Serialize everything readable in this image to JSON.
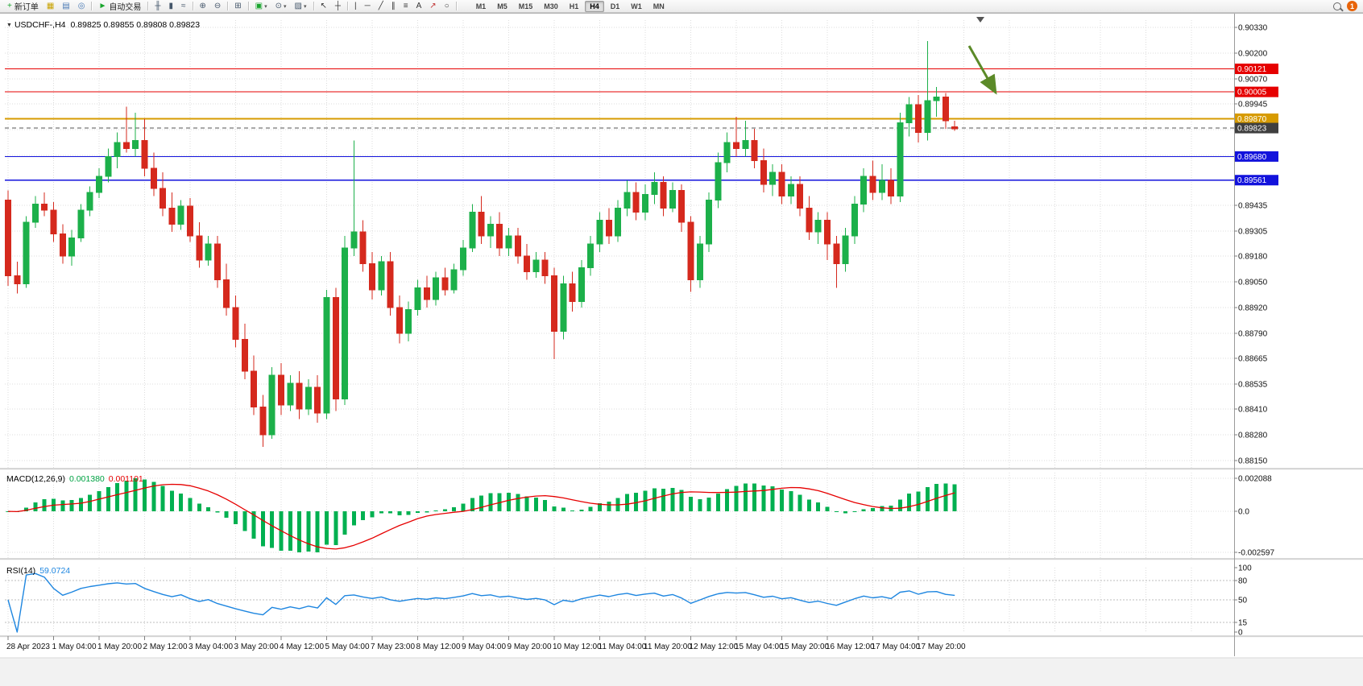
{
  "toolbar": {
    "buttons": [
      {
        "name": "new-order-button",
        "icon": "plus-doc-icon",
        "glyph": "+",
        "glyph_color": "#18a52c",
        "label": "新订单"
      },
      {
        "name": "charts-grid-button",
        "icon": "chart-grid-icon",
        "glyph": "▦",
        "glyph_color": "#c8a200"
      },
      {
        "name": "market-watch-button",
        "icon": "market-watch-icon",
        "glyph": "▤",
        "glyph_color": "#4a7ab5"
      },
      {
        "name": "navigator-button",
        "icon": "navigator-icon",
        "glyph": "◎",
        "glyph_color": "#4a7ab5",
        "sep_after": true
      },
      {
        "name": "auto-trading-button",
        "icon": "play-icon",
        "glyph": "►",
        "glyph_color": "#18a52c",
        "label": "自动交易",
        "sep_after": true
      },
      {
        "name": "bar-chart-button",
        "icon": "bar-chart-icon",
        "glyph": "╫",
        "glyph_color": "#44566a"
      },
      {
        "name": "candlestick-chart-button",
        "icon": "candlestick-icon",
        "glyph": "▮",
        "glyph_color": "#44566a"
      },
      {
        "name": "line-chart-button",
        "icon": "line-chart-icon",
        "glyph": "≈",
        "glyph_color": "#44566a",
        "sep_after": true
      },
      {
        "name": "zoom-in-button",
        "icon": "zoom-in-icon",
        "glyph": "⊕",
        "glyph_color": "#44566a"
      },
      {
        "name": "zoom-out-button",
        "icon": "zoom-out-icon",
        "glyph": "⊖",
        "glyph_color": "#44566a",
        "sep_after": true
      },
      {
        "name": "tile-windows-button",
        "icon": "tile-windows-icon",
        "glyph": "⊞",
        "glyph_color": "#44566a",
        "sep_after": true
      },
      {
        "name": "new-chart-button",
        "icon": "new-chart-icon",
        "glyph": "▣",
        "glyph_color": "#18a52c",
        "caret": true
      },
      {
        "name": "periods-button",
        "icon": "clock-icon",
        "glyph": "⊙",
        "glyph_color": "#44566a",
        "caret": true
      },
      {
        "name": "templates-button",
        "icon": "template-icon",
        "glyph": "▨",
        "glyph_color": "#44566a",
        "caret": true,
        "sep_after": true
      },
      {
        "name": "cursor-button",
        "icon": "cursor-icon",
        "glyph": "↖",
        "glyph_color": "#333333"
      },
      {
        "name": "crosshair-button",
        "icon": "crosshair-icon",
        "glyph": "┼",
        "glyph_color": "#333333",
        "sep_after": true
      },
      {
        "name": "vertical-line-button",
        "icon": "vertical-line-icon",
        "glyph": "|",
        "glyph_color": "#333333"
      },
      {
        "name": "horizontal-line-button",
        "icon": "horizontal-line-icon",
        "glyph": "─",
        "glyph_color": "#333333"
      },
      {
        "name": "trendline-button",
        "icon": "trendline-icon",
        "glyph": "╱",
        "glyph_color": "#333333"
      },
      {
        "name": "channel-button",
        "icon": "channel-icon",
        "glyph": "∥",
        "glyph_color": "#333333"
      },
      {
        "name": "fibonacci-button",
        "icon": "fibonacci-icon",
        "glyph": "≡",
        "glyph_color": "#333333"
      },
      {
        "name": "text-button",
        "icon": "text-icon",
        "glyph": "A",
        "glyph_color": "#333333"
      },
      {
        "name": "arrows-button",
        "icon": "arrow-marker-icon",
        "glyph": "↗",
        "glyph_color": "#c03030"
      },
      {
        "name": "shapes-button",
        "icon": "shapes-icon",
        "glyph": "○",
        "glyph_color": "#333333",
        "sep_after": true
      }
    ],
    "timeframes": [
      "M1",
      "M5",
      "M15",
      "M30",
      "H1",
      "H4",
      "D1",
      "W1",
      "MN"
    ],
    "active_timeframe": "H4",
    "notification_count": "1"
  },
  "chart": {
    "one_click_arrow": "▼",
    "title_symbol": "USDCHF-,H4",
    "title_ohlc": "0.89825 0.89855 0.89808 0.89823"
  },
  "panes": {
    "macd": {
      "label": "MACD(12,26,9)",
      "main_value": "0.001380",
      "signal_value": "0.001101"
    },
    "rsi": {
      "label": "RSI(14)",
      "value": "59.0724"
    }
  },
  "chart_data": [
    {
      "type": "candlestick",
      "symbol": "USDCHF-",
      "timeframe": "H4",
      "current_ohlc": {
        "open": 0.89825,
        "high": 0.89855,
        "low": 0.89808,
        "close": 0.89823
      },
      "up_color": "#1cb04a",
      "down_color": "#d5291d",
      "grid_on": true,
      "y_tick_labels": [
        "0.90330",
        "0.90200",
        "0.90070",
        "0.89945",
        "0.89815",
        "0.89685",
        "0.89560",
        "0.89435",
        "0.89305",
        "0.89180",
        "0.89050",
        "0.88920",
        "0.88790",
        "0.88665",
        "0.88535",
        "0.88410",
        "0.88280",
        "0.88150"
      ],
      "y_tick_values": [
        0.9033,
        0.902,
        0.9007,
        0.89945,
        0.89815,
        0.89685,
        0.8956,
        0.89435,
        0.89305,
        0.8918,
        0.8905,
        0.8892,
        0.8879,
        0.88665,
        0.88535,
        0.8841,
        0.8828,
        0.8815
      ],
      "ylim": [
        0.88114,
        0.90366
      ],
      "x_labels": [
        "28 Apr 2023",
        "1 May 04:00",
        "1 May 20:00",
        "2 May 12:00",
        "3 May 04:00",
        "3 May 20:00",
        "4 May 12:00",
        "5 May 04:00",
        "7 May 23:00",
        "8 May 12:00",
        "9 May 04:00",
        "9 May 20:00",
        "10 May 12:00",
        "11 May 04:00",
        "11 May 20:00",
        "12 May 12:00",
        "15 May 04:00",
        "15 May 20:00",
        "16 May 12:00",
        "17 May 04:00",
        "17 May 20:00"
      ],
      "hlines": [
        {
          "value": 0.90121,
          "label": "0.90121",
          "color": "#e60000",
          "style": "solid"
        },
        {
          "value": 0.90005,
          "label": "0.90005",
          "color": "#e60000",
          "style": "solid"
        },
        {
          "value": 0.8987,
          "label": "0.89870",
          "color": "#d79b00",
          "style": "solid"
        },
        {
          "value": 0.8968,
          "label": "0.89680",
          "color": "#1212dc",
          "style": "solid"
        },
        {
          "value": 0.89561,
          "label": "0.89561",
          "color": "#1212dc",
          "style": "solid"
        }
      ],
      "current_price": {
        "value": 0.89823,
        "label": "0.89823",
        "color": "#3f3f3f"
      },
      "arrow_annotation": {
        "color": "#5b8a28",
        "direction": "down-right"
      },
      "candles": [
        [
          0.8946,
          0.8951,
          0.8903,
          0.8908
        ],
        [
          0.8908,
          0.8915,
          0.8899,
          0.8904
        ],
        [
          0.8904,
          0.8938,
          0.8902,
          0.8935
        ],
        [
          0.8935,
          0.8948,
          0.8932,
          0.8944
        ],
        [
          0.8944,
          0.895,
          0.8938,
          0.8941
        ],
        [
          0.8941,
          0.8945,
          0.8925,
          0.8929
        ],
        [
          0.8929,
          0.8934,
          0.8914,
          0.8918
        ],
        [
          0.8918,
          0.8931,
          0.8913,
          0.8927
        ],
        [
          0.8927,
          0.8944,
          0.8925,
          0.8941
        ],
        [
          0.8941,
          0.8953,
          0.8938,
          0.895
        ],
        [
          0.895,
          0.8962,
          0.8947,
          0.8958
        ],
        [
          0.8958,
          0.8972,
          0.8955,
          0.8968
        ],
        [
          0.8968,
          0.898,
          0.8962,
          0.8975
        ],
        [
          0.8975,
          0.8993,
          0.897,
          0.8972
        ],
        [
          0.8972,
          0.899,
          0.8968,
          0.8976
        ],
        [
          0.8976,
          0.8987,
          0.8958,
          0.8962
        ],
        [
          0.8962,
          0.897,
          0.8948,
          0.8952
        ],
        [
          0.8952,
          0.896,
          0.8938,
          0.8942
        ],
        [
          0.8942,
          0.895,
          0.893,
          0.8934
        ],
        [
          0.8934,
          0.8946,
          0.8931,
          0.8943
        ],
        [
          0.8943,
          0.8947,
          0.8925,
          0.8928
        ],
        [
          0.8928,
          0.8935,
          0.8912,
          0.8916
        ],
        [
          0.8916,
          0.8928,
          0.8913,
          0.8924
        ],
        [
          0.8924,
          0.8928,
          0.8902,
          0.8906
        ],
        [
          0.8906,
          0.8914,
          0.8888,
          0.8892
        ],
        [
          0.8892,
          0.8898,
          0.8872,
          0.8876
        ],
        [
          0.8876,
          0.8884,
          0.8856,
          0.886
        ],
        [
          0.886,
          0.8868,
          0.8838,
          0.8842
        ],
        [
          0.8842,
          0.8848,
          0.8822,
          0.8828
        ],
        [
          0.8828,
          0.8862,
          0.8826,
          0.8858
        ],
        [
          0.8858,
          0.8864,
          0.8838,
          0.8843
        ],
        [
          0.8843,
          0.8858,
          0.884,
          0.8854
        ],
        [
          0.8854,
          0.886,
          0.8836,
          0.8841
        ],
        [
          0.8841,
          0.8856,
          0.8838,
          0.8852
        ],
        [
          0.8852,
          0.8858,
          0.8834,
          0.8839
        ],
        [
          0.8839,
          0.8901,
          0.8836,
          0.8897
        ],
        [
          0.8897,
          0.8902,
          0.884,
          0.8846
        ],
        [
          0.8846,
          0.8928,
          0.8843,
          0.8922
        ],
        [
          0.8922,
          0.8976,
          0.8918,
          0.893
        ],
        [
          0.893,
          0.8936,
          0.891,
          0.8914
        ],
        [
          0.8914,
          0.892,
          0.8896,
          0.8901
        ],
        [
          0.8901,
          0.8918,
          0.8898,
          0.8915
        ],
        [
          0.8915,
          0.892,
          0.8888,
          0.8892
        ],
        [
          0.8892,
          0.8898,
          0.8874,
          0.8879
        ],
        [
          0.8879,
          0.8895,
          0.8875,
          0.8891
        ],
        [
          0.8891,
          0.8906,
          0.8888,
          0.8902
        ],
        [
          0.8902,
          0.8908,
          0.8892,
          0.8896
        ],
        [
          0.8896,
          0.891,
          0.8893,
          0.8907
        ],
        [
          0.8907,
          0.8912,
          0.8898,
          0.8901
        ],
        [
          0.8901,
          0.8914,
          0.8899,
          0.8911
        ],
        [
          0.8911,
          0.8926,
          0.8908,
          0.8922
        ],
        [
          0.8922,
          0.8944,
          0.892,
          0.894
        ],
        [
          0.894,
          0.8948,
          0.8924,
          0.8928
        ],
        [
          0.8928,
          0.8938,
          0.8922,
          0.8934
        ],
        [
          0.8934,
          0.894,
          0.8918,
          0.8922
        ],
        [
          0.8922,
          0.8932,
          0.8918,
          0.8928
        ],
        [
          0.8928,
          0.8932,
          0.8914,
          0.8918
        ],
        [
          0.8918,
          0.8924,
          0.8906,
          0.891
        ],
        [
          0.891,
          0.892,
          0.8907,
          0.8916
        ],
        [
          0.8916,
          0.892,
          0.8904,
          0.8908
        ],
        [
          0.8908,
          0.8912,
          0.8866,
          0.888
        ],
        [
          0.888,
          0.8908,
          0.8876,
          0.8904
        ],
        [
          0.8904,
          0.891,
          0.889,
          0.8895
        ],
        [
          0.8895,
          0.8916,
          0.8892,
          0.8912
        ],
        [
          0.8912,
          0.8928,
          0.8908,
          0.8924
        ],
        [
          0.8924,
          0.894,
          0.892,
          0.8936
        ],
        [
          0.8936,
          0.8942,
          0.8924,
          0.8928
        ],
        [
          0.8928,
          0.8946,
          0.8925,
          0.8942
        ],
        [
          0.8942,
          0.8956,
          0.8938,
          0.895
        ],
        [
          0.895,
          0.8955,
          0.8936,
          0.894
        ],
        [
          0.894,
          0.8954,
          0.8936,
          0.8949
        ],
        [
          0.8949,
          0.896,
          0.8944,
          0.8955
        ],
        [
          0.8955,
          0.8958,
          0.8938,
          0.8942
        ],
        [
          0.8942,
          0.8955,
          0.894,
          0.8951
        ],
        [
          0.8951,
          0.8954,
          0.893,
          0.8935
        ],
        [
          0.8935,
          0.8938,
          0.89,
          0.8906
        ],
        [
          0.8906,
          0.8928,
          0.8902,
          0.8924
        ],
        [
          0.8924,
          0.895,
          0.892,
          0.8946
        ],
        [
          0.8946,
          0.897,
          0.8942,
          0.8965
        ],
        [
          0.8965,
          0.898,
          0.896,
          0.8975
        ],
        [
          0.8975,
          0.8988,
          0.8968,
          0.8972
        ],
        [
          0.8972,
          0.8986,
          0.8968,
          0.8976
        ],
        [
          0.8976,
          0.8982,
          0.8962,
          0.8966
        ],
        [
          0.8966,
          0.8972,
          0.895,
          0.8954
        ],
        [
          0.8954,
          0.8964,
          0.8948,
          0.896
        ],
        [
          0.896,
          0.8964,
          0.8944,
          0.8948
        ],
        [
          0.8948,
          0.8958,
          0.8944,
          0.8954
        ],
        [
          0.8954,
          0.8958,
          0.8938,
          0.8942
        ],
        [
          0.8942,
          0.8948,
          0.8926,
          0.893
        ],
        [
          0.893,
          0.894,
          0.8924,
          0.8936
        ],
        [
          0.8936,
          0.894,
          0.8916,
          0.8924
        ],
        [
          0.8924,
          0.8928,
          0.8902,
          0.8914
        ],
        [
          0.8914,
          0.8932,
          0.891,
          0.8928
        ],
        [
          0.8928,
          0.8948,
          0.8924,
          0.8944
        ],
        [
          0.8944,
          0.8962,
          0.894,
          0.8958
        ],
        [
          0.8958,
          0.8966,
          0.8946,
          0.895
        ],
        [
          0.895,
          0.8964,
          0.8946,
          0.8956
        ],
        [
          0.8956,
          0.8962,
          0.8944,
          0.8948
        ],
        [
          0.8948,
          0.899,
          0.8945,
          0.8985
        ],
        [
          0.8985,
          0.8998,
          0.8978,
          0.8994
        ],
        [
          0.8994,
          0.8999,
          0.8975,
          0.898
        ],
        [
          0.898,
          0.9026,
          0.8976,
          0.8996
        ],
        [
          0.8996,
          0.9003,
          0.8988,
          0.8998
        ],
        [
          0.8998,
          0.9,
          0.8982,
          0.8986
        ],
        [
          0.8983,
          0.8986,
          0.8981,
          0.8982
        ]
      ]
    },
    {
      "type": "macd_histogram",
      "label": "MACD(12,26,9)",
      "params": [
        12,
        26,
        9
      ],
      "current_main": 0.00138,
      "current_signal": 0.001101,
      "axis_tick_labels": [
        "0.002088",
        "0.0",
        "-0.002597"
      ],
      "axis_tick_values": [
        0.002088,
        0,
        -0.002597
      ],
      "ylim": [
        -0.00295,
        0.00245
      ],
      "histogram_color": "#00b050",
      "signal_color": "#e60000"
    },
    {
      "type": "rsi_line",
      "label": "RSI(14)",
      "period": 14,
      "current_value": 59.0724,
      "axis_tick_labels": [
        "100",
        "80",
        "50",
        "15",
        "0"
      ],
      "axis_tick_values": [
        100,
        80,
        50,
        15,
        0
      ],
      "levels": [
        80,
        50,
        15
      ],
      "ylim": [
        0,
        100
      ],
      "line_color": "#1e86e0"
    }
  ]
}
